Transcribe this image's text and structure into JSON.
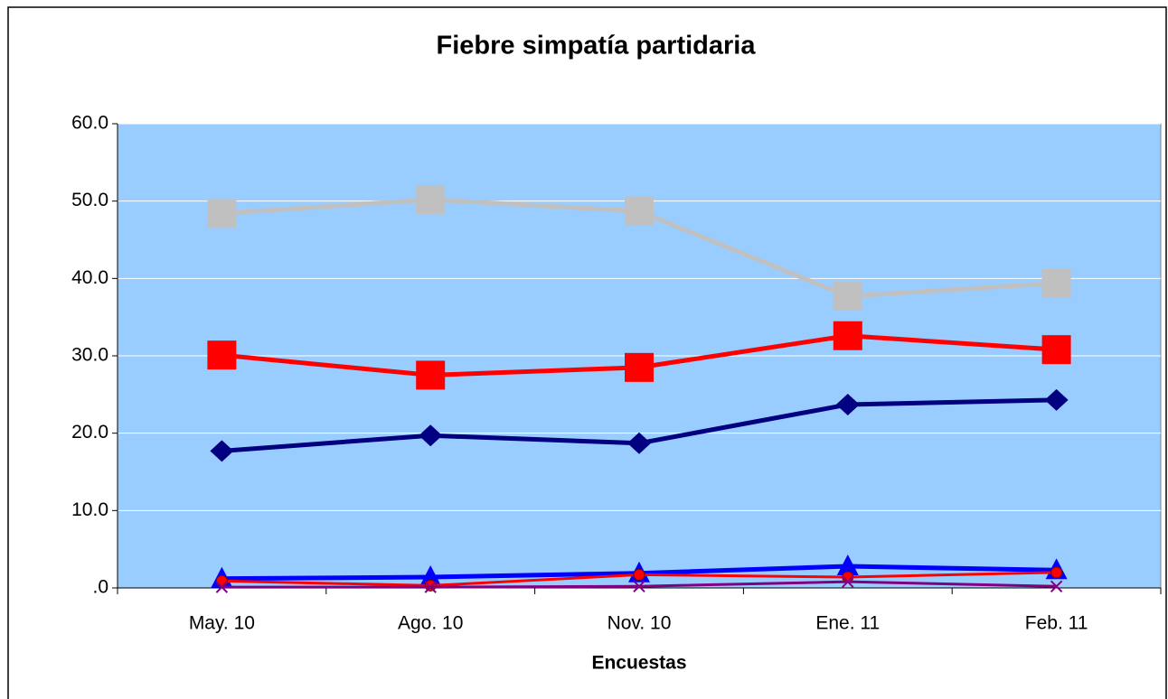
{
  "chart_data": {
    "type": "line",
    "title": "Fiebre simpatía partidaria",
    "x_label": "Encuestas",
    "categories": [
      "May. 10",
      "Ago. 10",
      "Nov. 10",
      "Ene. 11",
      "Feb. 11"
    ],
    "ylim": [
      0,
      60
    ],
    "yticks": [
      {
        "value": 0,
        "label": ".0"
      },
      {
        "value": 10,
        "label": "10.0"
      },
      {
        "value": 20,
        "label": "20.0"
      },
      {
        "value": 30,
        "label": "30.0"
      },
      {
        "value": 40,
        "label": "40.0"
      },
      {
        "value": 50,
        "label": "50.0"
      },
      {
        "value": 60,
        "label": "60.0"
      }
    ],
    "grid": true,
    "plot_background": "#99ccff",
    "series": [
      {
        "color": "#c0c0c0",
        "marker": "square",
        "values": [
          48.4,
          50.2,
          48.7,
          37.7,
          39.4
        ]
      },
      {
        "color": "#ff0000",
        "marker": "square",
        "values": [
          30.1,
          27.5,
          28.5,
          32.6,
          30.8
        ]
      },
      {
        "color": "#000080",
        "marker": "diamond",
        "values": [
          17.7,
          19.7,
          18.7,
          23.7,
          24.3
        ]
      },
      {
        "color": "#0000ff",
        "marker": "triangle",
        "values": [
          1.2,
          1.4,
          1.9,
          2.8,
          2.3
        ]
      },
      {
        "color": "#ff0000",
        "marker": "circle",
        "values": [
          0.9,
          0.3,
          1.7,
          1.4,
          2.0
        ]
      },
      {
        "color": "#800080",
        "marker": "x",
        "values": [
          0.1,
          0.1,
          0.2,
          0.8,
          0.2
        ]
      }
    ]
  }
}
